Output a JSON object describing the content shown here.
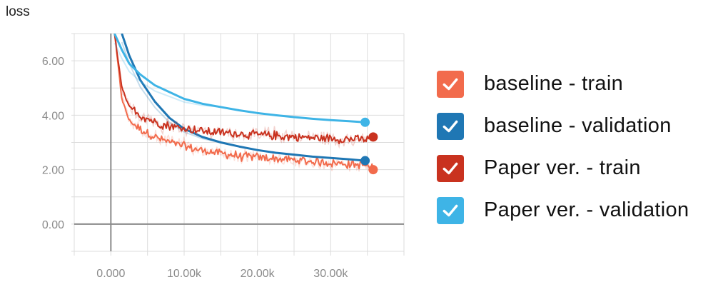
{
  "chart_data": {
    "type": "line",
    "ylabel": "loss",
    "xlabel": "",
    "title": "",
    "xlim": [
      -5000,
      40000
    ],
    "ylim": [
      -1.0,
      7.0
    ],
    "x_ticks": [
      0,
      10000,
      20000,
      30000
    ],
    "x_tick_labels": [
      "0.000",
      "10.00k",
      "20.00k",
      "30.00k"
    ],
    "y_ticks": [
      0,
      2,
      4,
      6
    ],
    "y_tick_labels": [
      "0.00",
      "2.00",
      "4.00",
      "6.00"
    ],
    "grid": true,
    "legend_position": "right",
    "series": [
      {
        "name": "baseline - train",
        "color": "#f26b4c",
        "noisy": true,
        "x": [
          500,
          1500,
          2500,
          4000,
          6000,
          8000,
          10000,
          12500,
          15000,
          17500,
          20000,
          22500,
          25000,
          27500,
          30000,
          32500,
          35000,
          35800
        ],
        "y": [
          7.0,
          4.6,
          3.8,
          3.5,
          3.2,
          3.0,
          2.85,
          2.7,
          2.6,
          2.5,
          2.45,
          2.4,
          2.35,
          2.3,
          2.25,
          2.2,
          2.15,
          2.0
        ]
      },
      {
        "name": "baseline - validation",
        "color": "#1f77b4",
        "noisy": false,
        "x": [
          1500,
          2500,
          4000,
          6000,
          8000,
          10000,
          12500,
          15000,
          17500,
          20000,
          22500,
          25000,
          27500,
          30000,
          32500,
          34700
        ],
        "y": [
          7.0,
          6.2,
          5.3,
          4.5,
          3.9,
          3.5,
          3.2,
          3.0,
          2.85,
          2.72,
          2.62,
          2.55,
          2.48,
          2.43,
          2.38,
          2.33
        ]
      },
      {
        "name": "Paper ver. - train",
        "color": "#c9321f",
        "noisy": true,
        "x": [
          500,
          1500,
          2500,
          4000,
          6000,
          8000,
          10000,
          12500,
          15000,
          17500,
          20000,
          22500,
          25000,
          27500,
          30000,
          32500,
          35000,
          35800
        ],
        "y": [
          7.0,
          5.0,
          4.3,
          4.0,
          3.75,
          3.6,
          3.5,
          3.42,
          3.36,
          3.32,
          3.28,
          3.24,
          3.2,
          3.17,
          3.14,
          3.12,
          3.1,
          3.2
        ]
      },
      {
        "name": "Paper ver. - validation",
        "color": "#3eb4e6",
        "noisy": false,
        "x": [
          500,
          1500,
          2500,
          4000,
          6000,
          8000,
          10000,
          12500,
          15000,
          17500,
          20000,
          22500,
          25000,
          27500,
          30000,
          32500,
          34700
        ],
        "y": [
          7.0,
          6.4,
          5.9,
          5.5,
          5.1,
          4.85,
          4.6,
          4.42,
          4.3,
          4.18,
          4.08,
          4.0,
          3.93,
          3.87,
          3.82,
          3.78,
          3.74
        ]
      }
    ]
  }
}
